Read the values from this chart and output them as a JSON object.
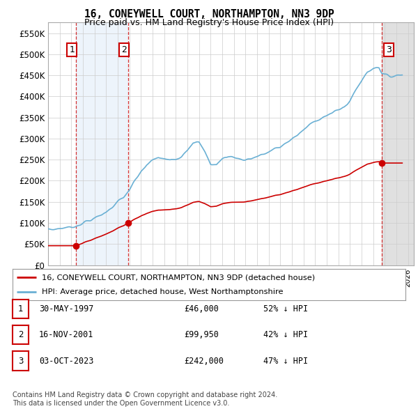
{
  "title": "16, CONEYWELL COURT, NORTHAMPTON, NN3 9DP",
  "subtitle": "Price paid vs. HM Land Registry's House Price Index (HPI)",
  "ylim": [
    0,
    575000
  ],
  "yticks": [
    0,
    50000,
    100000,
    150000,
    200000,
    250000,
    300000,
    350000,
    400000,
    450000,
    500000,
    550000
  ],
  "ytick_labels": [
    "£0",
    "£50K",
    "£100K",
    "£150K",
    "£200K",
    "£250K",
    "£300K",
    "£350K",
    "£400K",
    "£450K",
    "£500K",
    "£550K"
  ],
  "hpi_color": "#6ab0d4",
  "price_color": "#cc0000",
  "sale1_date": 1997.41,
  "sale1_price": 46000,
  "sale2_date": 2001.88,
  "sale2_price": 99950,
  "sale3_date": 2023.75,
  "sale3_price": 242000,
  "xmin": 1995.0,
  "xmax": 2026.5,
  "legend_label1": "16, CONEYWELL COURT, NORTHAMPTON, NN3 9DP (detached house)",
  "legend_label2": "HPI: Average price, detached house, West Northamptonshire",
  "table_row1": [
    "1",
    "30-MAY-1997",
    "£46,000",
    "52% ↓ HPI"
  ],
  "table_row2": [
    "2",
    "16-NOV-2001",
    "£99,950",
    "42% ↓ HPI"
  ],
  "table_row3": [
    "3",
    "03-OCT-2023",
    "£242,000",
    "47% ↓ HPI"
  ],
  "footer": "Contains HM Land Registry data © Crown copyright and database right 2024.\nThis data is licensed under the Open Government Licence v3.0.",
  "background_color": "#ffffff",
  "grid_color": "#cccccc",
  "shade_between_sales_color": "#ddeeff",
  "shade_after_sale3_color": "#d8d8d8"
}
